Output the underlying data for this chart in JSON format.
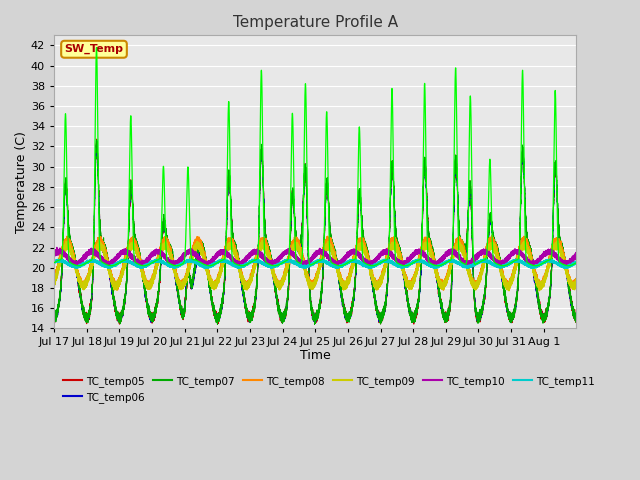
{
  "title": "Temperature Profile A",
  "xlabel": "Time",
  "ylabel": "Temperature (C)",
  "ylim": [
    14,
    43
  ],
  "yticks": [
    14,
    16,
    18,
    20,
    22,
    24,
    26,
    28,
    30,
    32,
    34,
    36,
    38,
    40,
    42
  ],
  "fig_bg_color": "#d4d4d4",
  "plot_bg_color": "#e8e8e8",
  "grid_color": "#ffffff",
  "sw_temp_color": "#00ff00",
  "sw_temp_label": "SW_Temp",
  "sw_temp_box_color": "#ffff99",
  "sw_temp_box_edge": "#cc8800",
  "series_colors": {
    "TC_temp05": "#cc0000",
    "TC_temp06": "#0000cc",
    "TC_temp07": "#00aa00",
    "TC_temp08": "#ff8800",
    "TC_temp09": "#cccc00",
    "TC_temp10": "#aa00aa",
    "TC_temp11": "#00cccc"
  },
  "tick_labels": [
    "Jul 17",
    "Jul 18",
    "Jul 19",
    "Jul 20",
    "Jul 21",
    "Jul 22",
    "Jul 23",
    "Jul 24",
    "Jul 25",
    "Jul 26",
    "Jul 27",
    "Jul 28",
    "Jul 29",
    "Jul 30",
    "Jul 31",
    "Aug 1"
  ],
  "n_days": 16,
  "title_fontsize": 11,
  "tick_fontsize": 8,
  "label_fontsize": 9
}
